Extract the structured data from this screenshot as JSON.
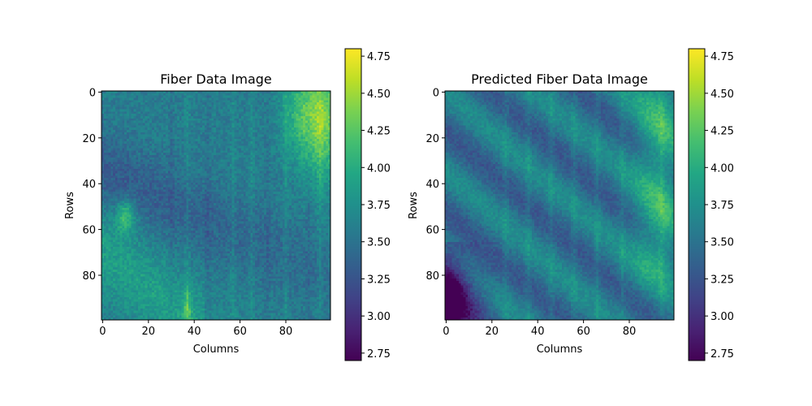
{
  "chart_data": [
    {
      "type": "heatmap",
      "title": "Fiber Data Image",
      "xlabel": "Columns",
      "ylabel": "Rows",
      "grid_shape": [
        100,
        100
      ],
      "x_ticks": [
        0,
        20,
        40,
        60,
        80
      ],
      "y_ticks": [
        0,
        20,
        40,
        60,
        80
      ],
      "xlim": [
        -0.5,
        99.5
      ],
      "ylim": [
        99.5,
        -0.5
      ],
      "colormap": "viridis",
      "colorbar": {
        "min": 2.7,
        "max": 4.8,
        "ticks": [
          2.75,
          3.0,
          3.25,
          3.5,
          3.75,
          4.0,
          4.25,
          4.5,
          4.75
        ]
      },
      "features": {
        "base_value": 3.6,
        "bright_region": "top-right, columns 85-99, rows 0-40, values up to ~4.5",
        "dark_band": "diagonal from rows 20-60 near left edge toward lower right, ~3.2",
        "bright_spot": "column ~10, rows ~50-58, ~4.3",
        "lower_left_band": "columns 0-40, rows 75-99, ~3.8-4.0",
        "vertical_stripes": "columns ~37, 57, 65, 80, 95 brighter"
      }
    },
    {
      "type": "heatmap",
      "title": "Predicted Fiber Data Image",
      "xlabel": "Columns",
      "ylabel": "Rows",
      "grid_shape": [
        100,
        100
      ],
      "x_ticks": [
        0,
        20,
        40,
        60,
        80
      ],
      "y_ticks": [
        0,
        20,
        40,
        60,
        80
      ],
      "xlim": [
        -0.5,
        99.5
      ],
      "ylim": [
        99.5,
        -0.5
      ],
      "colormap": "viridis",
      "colorbar": {
        "min": 2.7,
        "max": 4.8,
        "ticks": [
          2.75,
          3.0,
          3.25,
          3.5,
          3.75,
          4.0,
          4.25,
          4.5,
          4.75
        ]
      },
      "features": {
        "base_value": 3.55,
        "diagonal_bands": "repeating bright/dark diagonal bands slope ~0.9, period ~35 columns",
        "dark_corner": "bottom-left, columns 0-8, rows 70-99, ~2.8",
        "bright_region": "top-right, columns 85-99, rows 0-70, ~4.1",
        "vertical_stripes": "columns ~26, 36, 46, 56, 66, 77, 94 brighter"
      }
    }
  ]
}
